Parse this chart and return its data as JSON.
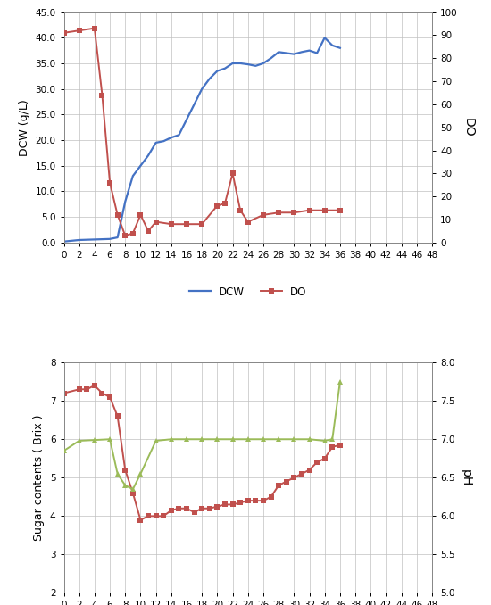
{
  "top_chart": {
    "dcw_x": [
      0,
      2,
      4,
      6,
      7,
      8,
      9,
      10,
      11,
      12,
      13,
      14,
      15,
      16,
      17,
      18,
      19,
      20,
      21,
      22,
      23,
      24,
      25,
      26,
      27,
      28,
      29,
      30,
      31,
      32,
      33,
      34,
      35,
      36
    ],
    "dcw_y": [
      0.2,
      0.5,
      0.6,
      0.7,
      1.0,
      8.0,
      13.0,
      15.0,
      17.0,
      19.5,
      19.8,
      20.5,
      21.0,
      24.0,
      27.0,
      30.0,
      32.0,
      33.5,
      34.0,
      35.0,
      35.0,
      34.8,
      34.5,
      35.0,
      36.0,
      37.2,
      37.0,
      36.8,
      37.2,
      37.5,
      37.0,
      40.0,
      38.5,
      38.0
    ],
    "do_x": [
      0,
      2,
      4,
      5,
      6,
      7,
      8,
      9,
      10,
      11,
      12,
      14,
      16,
      18,
      20,
      21,
      22,
      23,
      24,
      26,
      28,
      30,
      32,
      34,
      36
    ],
    "do_y": [
      91,
      92,
      93,
      64,
      26,
      12,
      3,
      4,
      12,
      5,
      9,
      8,
      8,
      8,
      16,
      17,
      30,
      14,
      9,
      12,
      13,
      13,
      14,
      14,
      14
    ],
    "dcw_color": "#4472C4",
    "do_color": "#C0504D",
    "ylabel_left": "DCW (g/L)",
    "ylabel_right": "DO",
    "ylim_left": [
      0,
      45
    ],
    "ylim_right": [
      0,
      100
    ],
    "yticks_left": [
      0.0,
      5.0,
      10.0,
      15.0,
      20.0,
      25.0,
      30.0,
      35.0,
      40.0,
      45.0
    ],
    "yticks_right": [
      0,
      10,
      20,
      30,
      40,
      50,
      60,
      70,
      80,
      90,
      100
    ]
  },
  "bottom_chart": {
    "sugar_x": [
      0,
      2,
      3,
      4,
      5,
      6,
      7,
      8,
      9,
      10,
      11,
      12,
      13,
      14,
      15,
      16,
      17,
      18,
      19,
      20,
      21,
      22,
      23,
      24,
      25,
      26,
      27,
      28,
      29,
      30,
      31,
      32,
      33,
      34,
      35,
      36
    ],
    "sugar_y": [
      7.2,
      7.3,
      7.3,
      7.4,
      7.2,
      7.1,
      6.6,
      5.2,
      4.6,
      3.9,
      4.0,
      4.0,
      4.0,
      4.15,
      4.2,
      4.2,
      4.1,
      4.2,
      4.2,
      4.25,
      4.3,
      4.3,
      4.35,
      4.4,
      4.4,
      4.4,
      4.5,
      4.8,
      4.9,
      5.0,
      5.1,
      5.2,
      5.4,
      5.5,
      5.8,
      5.85
    ],
    "ph_x": [
      0,
      2,
      4,
      6,
      7,
      8,
      9,
      10,
      12,
      14,
      16,
      18,
      20,
      22,
      24,
      26,
      28,
      30,
      32,
      34,
      35,
      36
    ],
    "ph_y": [
      6.85,
      6.98,
      6.99,
      7.0,
      6.55,
      6.4,
      6.35,
      6.55,
      6.98,
      7.0,
      7.0,
      7.0,
      7.0,
      7.0,
      7.0,
      7.0,
      7.0,
      7.0,
      7.0,
      6.98,
      7.0,
      7.75
    ],
    "sugar_color": "#C0504D",
    "ph_color": "#9BBB59",
    "ylabel_left": "Sugar contents ( Brix )",
    "ylabel_right": "pH",
    "ylim_left": [
      2,
      8
    ],
    "ylim_right": [
      5,
      8
    ],
    "yticks_left": [
      2,
      3,
      4,
      5,
      6,
      7,
      8
    ],
    "yticks_right": [
      5.0,
      5.5,
      6.0,
      6.5,
      7.0,
      7.5,
      8.0
    ]
  },
  "xticks": [
    0,
    2,
    4,
    6,
    8,
    10,
    12,
    14,
    16,
    18,
    20,
    22,
    24,
    26,
    28,
    30,
    32,
    34,
    36,
    38,
    40,
    42,
    44,
    46,
    48
  ],
  "xlim": [
    0,
    48
  ],
  "background_color": "#FFFFFF",
  "grid_color": "#C0C0C0"
}
